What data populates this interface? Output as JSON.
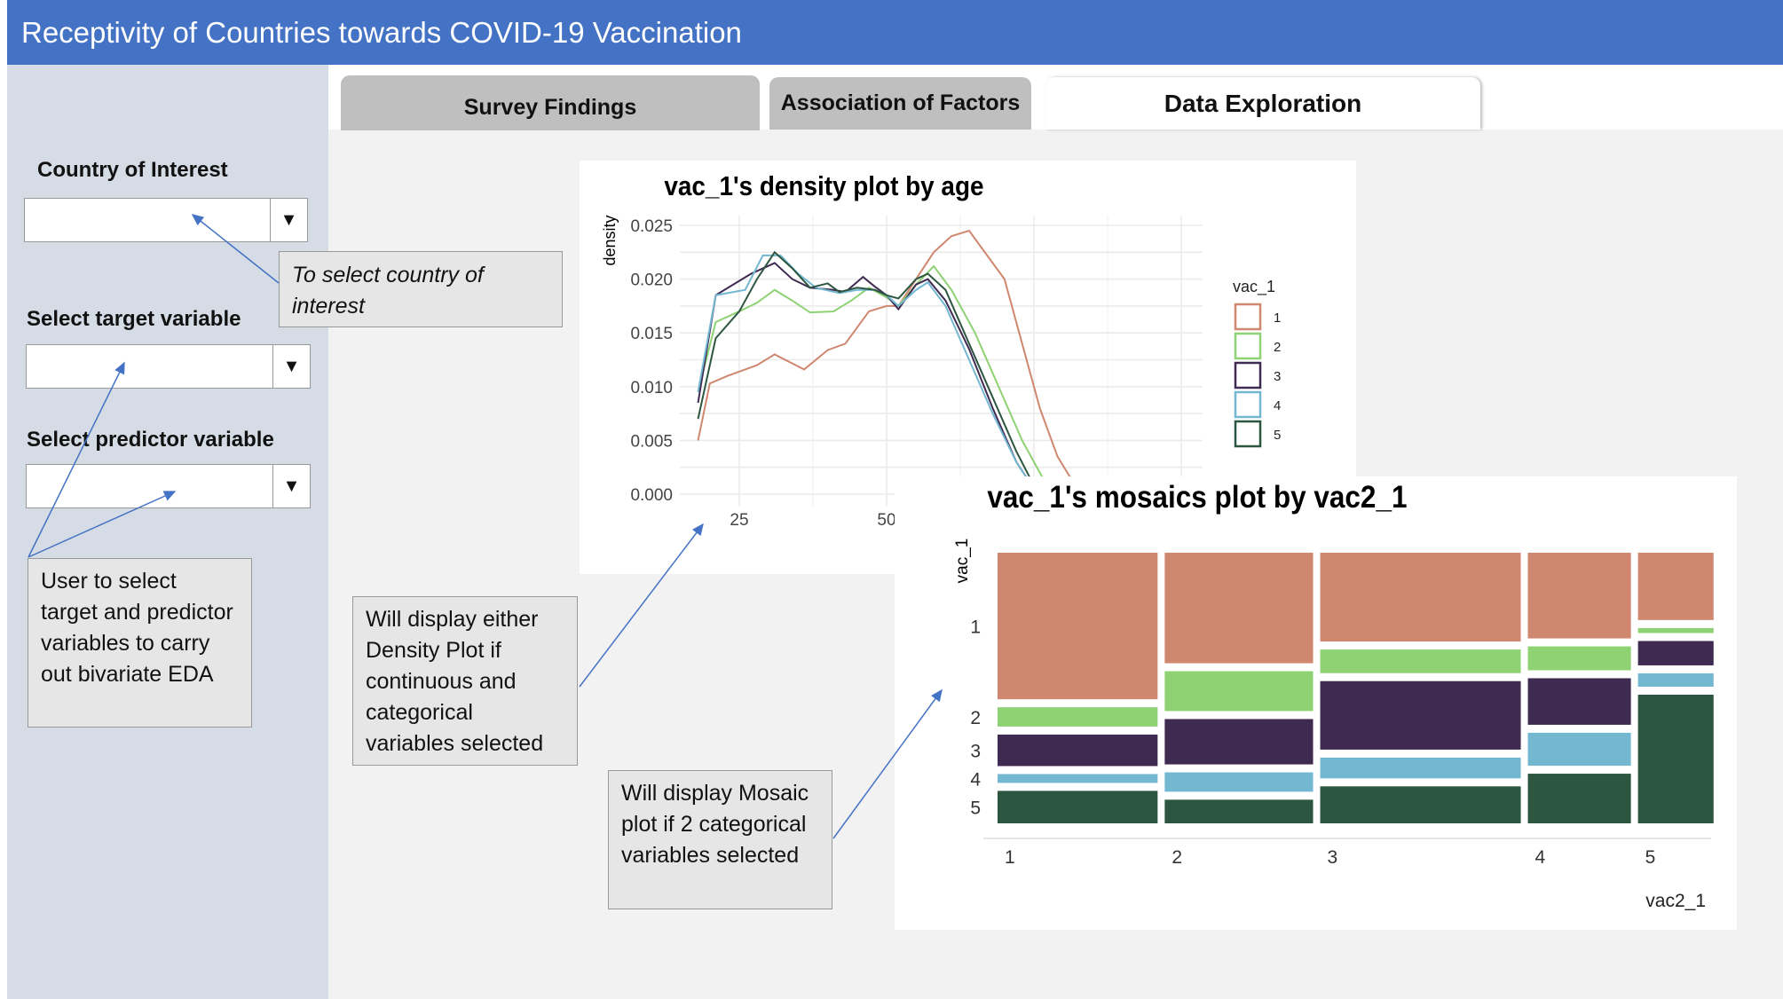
{
  "header": {
    "title": "Receptivity of Countries towards COVID-19 Vaccination"
  },
  "tabs": [
    {
      "label": "Survey Findings"
    },
    {
      "label": "Association of Factors"
    },
    {
      "label": "Data Exploration",
      "active": true
    }
  ],
  "sidebar": {
    "country_label": "Country of Interest",
    "target_label": "Select target variable",
    "predictor_label": "Select predictor variable",
    "dropdown_arrow": "▼"
  },
  "callouts": {
    "country": "To select country of interest",
    "variables": "User to select target and predictor variables to carry out bivariate EDA",
    "density": "Will display either Density Plot if continuous and categorical variables selected",
    "mosaic": "Will display Mosaic plot if 2 categorical variables selected"
  },
  "colors": {
    "header": "#4472C4",
    "sidebar": "#D6DCE5",
    "arrow": "#4472C4"
  },
  "chart_data": [
    {
      "type": "line",
      "title": "vac_1's density plot by age",
      "xlabel": "",
      "ylabel": "density",
      "xlim": [
        18,
        103
      ],
      "ylim": [
        0,
        0.0255
      ],
      "x_ticks": [
        25,
        50
      ],
      "y_ticks": [
        "0.000",
        "0.005",
        "0.010",
        "0.015",
        "0.020",
        "0.025"
      ],
      "legend": {
        "title": "vac_1",
        "placement": "right"
      },
      "series": [
        {
          "name": "1",
          "color": "#D08770",
          "points": [
            [
              18,
              0.005
            ],
            [
              20,
              0.0103
            ],
            [
              23,
              0.011
            ],
            [
              28,
              0.012
            ],
            [
              31,
              0.013
            ],
            [
              36,
              0.0116
            ],
            [
              40,
              0.0134
            ],
            [
              43,
              0.014
            ],
            [
              47,
              0.017
            ],
            [
              50,
              0.0175
            ],
            [
              52,
              0.0175
            ],
            [
              55,
              0.02
            ],
            [
              58,
              0.0225
            ],
            [
              61,
              0.024
            ],
            [
              64,
              0.0245
            ],
            [
              66,
              0.023
            ],
            [
              70,
              0.02
            ],
            [
              73,
              0.014
            ],
            [
              76,
              0.008
            ],
            [
              79,
              0.0035
            ],
            [
              82,
              0.0008
            ],
            [
              84,
              0
            ]
          ]
        },
        {
          "name": "2",
          "color": "#8ED273",
          "points": [
            [
              18,
              0.0095
            ],
            [
              21,
              0.016
            ],
            [
              25,
              0.017
            ],
            [
              28,
              0.0178
            ],
            [
              31,
              0.019
            ],
            [
              34,
              0.018
            ],
            [
              37,
              0.0169
            ],
            [
              41,
              0.017
            ],
            [
              44,
              0.018
            ],
            [
              47,
              0.0192
            ],
            [
              50,
              0.0183
            ],
            [
              52,
              0.0175
            ],
            [
              55,
              0.0195
            ],
            [
              58,
              0.0212
            ],
            [
              61,
              0.019
            ],
            [
              65,
              0.015
            ],
            [
              69,
              0.01
            ],
            [
              73,
              0.005
            ],
            [
              77,
              0.001
            ],
            [
              80,
              0
            ]
          ]
        },
        {
          "name": "3",
          "color": "#3F2B52",
          "points": [
            [
              18,
              0.0085
            ],
            [
              21,
              0.0185
            ],
            [
              24,
              0.0195
            ],
            [
              27,
              0.0205
            ],
            [
              31,
              0.0215
            ],
            [
              34,
              0.02
            ],
            [
              37,
              0.0192
            ],
            [
              41,
              0.019
            ],
            [
              43,
              0.0188
            ],
            [
              46,
              0.0202
            ],
            [
              48,
              0.0193
            ],
            [
              50,
              0.0185
            ],
            [
              52,
              0.0172
            ],
            [
              55,
              0.0195
            ],
            [
              57,
              0.02
            ],
            [
              60,
              0.018
            ],
            [
              64,
              0.0135
            ],
            [
              68,
              0.008
            ],
            [
              72,
              0.003
            ],
            [
              75,
              0.0005
            ],
            [
              77,
              0
            ]
          ]
        },
        {
          "name": "4",
          "color": "#74B7D1",
          "points": [
            [
              18,
              0.0095
            ],
            [
              21,
              0.0185
            ],
            [
              24,
              0.0188
            ],
            [
              26,
              0.019
            ],
            [
              29,
              0.0222
            ],
            [
              32,
              0.0222
            ],
            [
              35,
              0.0205
            ],
            [
              38,
              0.0192
            ],
            [
              42,
              0.0187
            ],
            [
              45,
              0.019
            ],
            [
              48,
              0.019
            ],
            [
              50,
              0.0185
            ],
            [
              52,
              0.0175
            ],
            [
              55,
              0.019
            ],
            [
              57,
              0.0197
            ],
            [
              60,
              0.0175
            ],
            [
              64,
              0.0125
            ],
            [
              68,
              0.0075
            ],
            [
              72,
              0.003
            ],
            [
              75,
              0.0005
            ],
            [
              77,
              0
            ]
          ]
        },
        {
          "name": "5",
          "color": "#2D5640",
          "points": [
            [
              18,
              0.007
            ],
            [
              21,
              0.0145
            ],
            [
              25,
              0.017
            ],
            [
              28,
              0.02
            ],
            [
              31,
              0.0225
            ],
            [
              34,
              0.021
            ],
            [
              37,
              0.0192
            ],
            [
              40,
              0.0196
            ],
            [
              42,
              0.0188
            ],
            [
              45,
              0.0192
            ],
            [
              48,
              0.019
            ],
            [
              50,
              0.0185
            ],
            [
              52,
              0.0182
            ],
            [
              55,
              0.02
            ],
            [
              57,
              0.0205
            ],
            [
              60,
              0.019
            ],
            [
              64,
              0.014
            ],
            [
              68,
              0.009
            ],
            [
              72,
              0.004
            ],
            [
              75,
              0.0008
            ],
            [
              77,
              0
            ]
          ]
        }
      ]
    },
    {
      "type": "mosaic",
      "title": "vac_1's mosaics plot by vac2_1",
      "xlabel": "vac2_1",
      "ylabel": "vac_1",
      "x_categories": [
        "1",
        "2",
        "3",
        "4",
        "5"
      ],
      "y_categories": [
        "1",
        "2",
        "3",
        "4",
        "5"
      ],
      "column_widths": [
        0.233,
        0.216,
        0.292,
        0.15,
        0.11
      ],
      "colors": [
        "#D08770",
        "#8ED273",
        "#3F2B52",
        "#74B7D1",
        "#2D5640"
      ],
      "proportions": [
        [
          0.614,
          0.081,
          0.132,
          0.037,
          0.136
        ],
        [
          0.463,
          0.167,
          0.19,
          0.081,
          0.099
        ],
        [
          0.372,
          0.099,
          0.287,
          0.087,
          0.155
        ],
        [
          0.359,
          0.1,
          0.195,
          0.138,
          0.208
        ],
        [
          0.282,
          0.021,
          0.102,
          0.056,
          0.539
        ]
      ]
    }
  ]
}
